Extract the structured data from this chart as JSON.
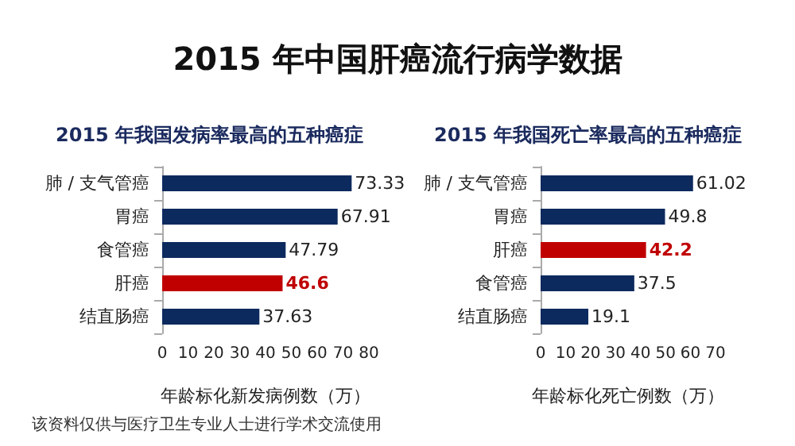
{
  "chart_data": [
    {
      "type": "other",
      "title": "2015 年中国肝癌流行病学数据",
      "annotations": [
        "该资料仅供与医疗卫生专业人士进行学术交流使用"
      ]
    },
    {
      "type": "bar",
      "orientation": "horizontal",
      "title": "2015 年我国发病率最高的五种癌症",
      "xlabel": "年龄标化新发病例数（万）",
      "categories": [
        "肺 / 支气管癌",
        "胃癌",
        "食管癌",
        "肝癌",
        "结直肠癌"
      ],
      "values": [
        73.33,
        67.91,
        47.79,
        46.6,
        37.63
      ],
      "colors": [
        "#0d2a5e",
        "#0d2a5e",
        "#0d2a5e",
        "#c00000",
        "#0d2a5e"
      ],
      "xlim": [
        0,
        80
      ],
      "xticks": [
        0,
        10,
        20,
        30,
        40,
        50,
        60,
        70,
        80
      ],
      "data_labels": true,
      "grid": false
    },
    {
      "type": "bar",
      "orientation": "horizontal",
      "title": "2015 年我国死亡率最高的五种癌症",
      "xlabel": "年龄标化死亡例数（万）",
      "categories": [
        "肺 / 支气管癌",
        "胃癌",
        "肝癌",
        "食管癌",
        "结直肠癌"
      ],
      "values": [
        61.02,
        49.8,
        42.2,
        37.5,
        19.1
      ],
      "colors": [
        "#0d2a5e",
        "#0d2a5e",
        "#c00000",
        "#0d2a5e",
        "#0d2a5e"
      ],
      "xlim": [
        0,
        70
      ],
      "xticks": [
        0,
        10,
        20,
        30,
        40,
        50,
        60,
        70
      ],
      "data_labels": true,
      "grid": false
    }
  ]
}
